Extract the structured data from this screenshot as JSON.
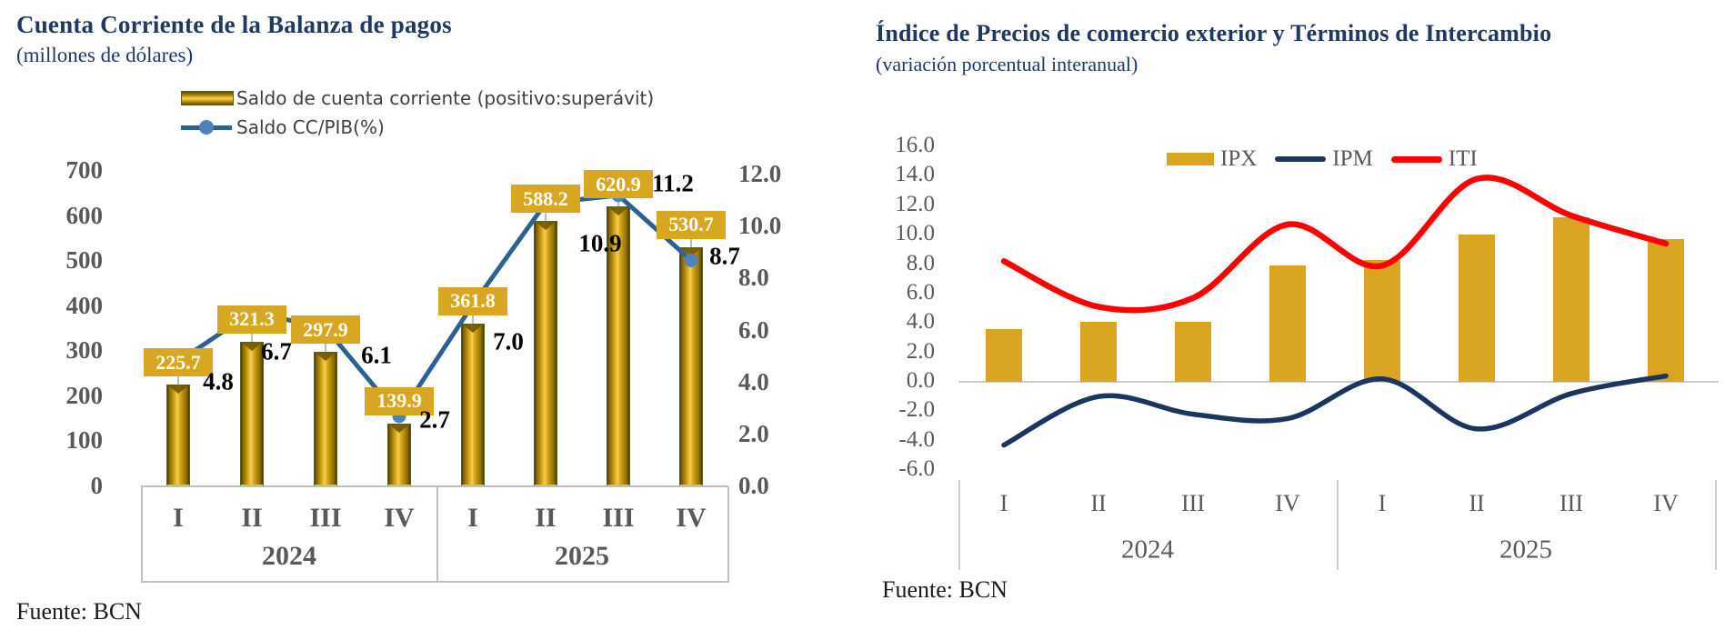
{
  "chart_data": [
    {
      "type": "bar+line combo",
      "title": "Cuenta Corriente de la Balanza de pagos",
      "subtitle": "(millones de dólares)",
      "source": "Fuente: BCN",
      "categories": [
        "I",
        "II",
        "III",
        "IV",
        "I",
        "II",
        "III",
        "IV"
      ],
      "year_groups": [
        "2024",
        "2025"
      ],
      "left_axis": {
        "min": 0,
        "max": 700,
        "ticks": [
          "700",
          "600",
          "500",
          "400",
          "300",
          "200",
          "100",
          "0"
        ]
      },
      "right_axis": {
        "min": 0.0,
        "max": 12.0,
        "ticks": [
          "12.0",
          "10.0",
          "8.0",
          "6.0",
          "4.0",
          "2.0",
          "0.0"
        ]
      },
      "legend_position": "top",
      "grid": "off",
      "series": [
        {
          "name": "Saldo de cuenta corriente (positivo:superávit)",
          "type": "bar",
          "axis": "left",
          "color": "#C9980F",
          "values": [
            225.7,
            321.3,
            297.9,
            139.9,
            361.8,
            588.2,
            620.9,
            530.7
          ]
        },
        {
          "name": "Saldo CC/PIB(%)",
          "type": "line",
          "axis": "right",
          "color": "#2E6093",
          "marker_color": "#4F81BD",
          "values": [
            4.8,
            6.7,
            6.1,
            2.7,
            7.0,
            10.9,
            11.2,
            8.7
          ]
        }
      ]
    },
    {
      "type": "bar+line combo",
      "title": "Índice de Precios de comercio exterior y Términos de Intercambio",
      "subtitle": "(variación porcentual interanual)",
      "source": "Fuente: BCN",
      "categories": [
        "I",
        "II",
        "III",
        "IV",
        "I",
        "II",
        "III",
        "IV"
      ],
      "year_groups": [
        "2024",
        "2025"
      ],
      "y_axis": {
        "min": -6.0,
        "max": 16.0,
        "ticks": [
          "16.0",
          "14.0",
          "12.0",
          "10.0",
          "8.0",
          "6.0",
          "4.0",
          "2.0",
          "0.0",
          "-2.0",
          "-4.0",
          "-6.0"
        ]
      },
      "legend_position": "top",
      "grid": "off",
      "series": [
        {
          "name": "IPX",
          "type": "bar",
          "color": "#D9A521",
          "values": [
            3.6,
            4.1,
            4.1,
            7.9,
            8.3,
            10.0,
            11.2,
            9.7
          ]
        },
        {
          "name": "IPM",
          "type": "line",
          "color": "#1B355E",
          "values": [
            -4.3,
            -1.0,
            -2.2,
            -2.5,
            0.2,
            -3.2,
            -0.8,
            0.4
          ]
        },
        {
          "name": "ITI",
          "type": "line",
          "color": "#FF0000",
          "values": [
            8.2,
            5.1,
            5.7,
            10.7,
            7.9,
            13.8,
            11.3,
            9.4
          ]
        }
      ]
    }
  ]
}
